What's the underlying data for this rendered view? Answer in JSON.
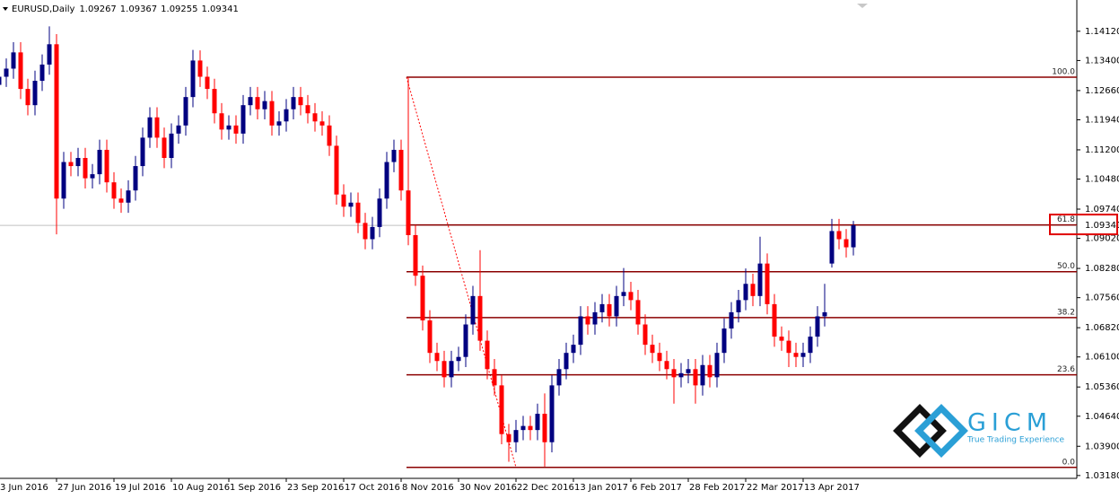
{
  "chart_data": {
    "type": "candlestick",
    "header": {
      "symbol": "EURUSD,Daily",
      "quote": [
        1.09267,
        1.09367,
        1.09255,
        1.09341
      ]
    },
    "categories": [
      "3 Jun 2016",
      null,
      null,
      null,
      null,
      null,
      null,
      null,
      "27 Jun 2016",
      null,
      null,
      null,
      null,
      null,
      null,
      null,
      "19 Jul 2016",
      null,
      null,
      null,
      null,
      null,
      null,
      null,
      "10 Aug 2016",
      null,
      null,
      null,
      null,
      null,
      null,
      null,
      "1 Sep 2016",
      null,
      null,
      null,
      null,
      null,
      null,
      null,
      "23 Sep 2016",
      null,
      null,
      null,
      null,
      null,
      null,
      null,
      "17 Oct 2016",
      null,
      null,
      null,
      null,
      null,
      null,
      null,
      "8 Nov 2016",
      null,
      null,
      null,
      null,
      null,
      null,
      null,
      "30 Nov 2016",
      null,
      null,
      null,
      null,
      null,
      null,
      null,
      "22 Dec 2016",
      null,
      null,
      null,
      null,
      null,
      null,
      null,
      "13 Jan 2017",
      null,
      null,
      null,
      null,
      null,
      null,
      null,
      "6 Feb 2017",
      null,
      null,
      null,
      null,
      null,
      null,
      null,
      "28 Feb 2017",
      null,
      null,
      null,
      null,
      null,
      null,
      null,
      "22 Mar 2017",
      null,
      null,
      null,
      null,
      null,
      null,
      null,
      "13 Apr 2017",
      null,
      null,
      null,
      null,
      null,
      null,
      null
    ],
    "open": [
      1.128,
      1.13,
      1.132,
      1.136,
      1.127,
      1.123,
      1.129,
      1.133,
      1.138,
      1.1,
      1.109,
      1.108,
      1.11,
      1.105,
      1.106,
      1.112,
      1.104,
      1.1,
      1.099,
      1.102,
      1.108,
      1.115,
      1.12,
      1.115,
      1.11,
      1.116,
      1.118,
      1.125,
      1.134,
      1.13,
      1.127,
      1.121,
      1.117,
      1.118,
      1.116,
      1.123,
      1.125,
      1.122,
      1.124,
      1.118,
      1.119,
      1.122,
      1.125,
      1.123,
      1.121,
      1.119,
      1.118,
      1.113,
      1.101,
      1.098,
      1.099,
      1.094,
      1.09,
      1.093,
      1.1,
      1.109,
      1.112,
      1.102,
      1.091,
      1.081,
      1.07,
      1.062,
      1.06,
      1.056,
      1.06,
      1.061,
      1.069,
      1.076,
      1.065,
      1.058,
      1.054,
      1.042,
      1.04,
      1.043,
      1.044,
      1.043,
      1.047,
      1.04,
      1.054,
      1.058,
      1.062,
      1.064,
      1.071,
      1.069,
      1.072,
      1.074,
      1.071,
      1.076,
      1.077,
      1.075,
      1.069,
      1.064,
      1.062,
      1.06,
      1.058,
      1.056,
      1.057,
      1.058,
      1.054,
      1.059,
      1.056,
      1.062,
      1.068,
      1.072,
      1.075,
      1.079,
      1.076,
      1.084,
      1.074,
      1.066,
      1.065,
      1.062,
      1.061,
      1.062,
      1.066,
      1.071,
      1.084,
      1.092,
      1.09,
      1.088
    ],
    "high": [
      1.1325,
      1.1345,
      1.1385,
      1.1385,
      1.1295,
      1.1315,
      1.1355,
      1.1424,
      1.1405,
      1.1115,
      1.1115,
      1.1125,
      1.1125,
      1.1085,
      1.1145,
      1.1145,
      1.1065,
      1.1025,
      1.1045,
      1.1105,
      1.1175,
      1.1225,
      1.1225,
      1.1175,
      1.1185,
      1.1205,
      1.1275,
      1.1366,
      1.1365,
      1.1325,
      1.1295,
      1.1235,
      1.1205,
      1.1205,
      1.1255,
      1.1275,
      1.1275,
      1.1265,
      1.1265,
      1.1215,
      1.1245,
      1.1275,
      1.1275,
      1.1255,
      1.1235,
      1.1215,
      1.1205,
      1.1155,
      1.1035,
      1.1015,
      1.1015,
      1.0965,
      1.0955,
      1.1025,
      1.1115,
      1.1145,
      1.1145,
      1.1299,
      1.0935,
      1.0835,
      1.0725,
      1.0645,
      1.0625,
      1.0625,
      1.0635,
      1.0715,
      1.0785,
      1.0873,
      1.0675,
      1.0605,
      1.0565,
      1.0445,
      1.0455,
      1.0465,
      1.0465,
      1.0495,
      1.052,
      1.0565,
      1.0605,
      1.0645,
      1.0665,
      1.0735,
      1.0735,
      1.0745,
      1.0765,
      1.0765,
      1.0785,
      1.0829,
      1.0795,
      1.0775,
      1.0715,
      1.0665,
      1.0645,
      1.0625,
      1.0605,
      1.0595,
      1.0605,
      1.0605,
      1.0615,
      1.0615,
      1.0645,
      1.0705,
      1.0745,
      1.0775,
      1.0828,
      1.0815,
      1.0906,
      1.0865,
      1.0765,
      1.0685,
      1.0675,
      1.0645,
      1.0645,
      1.0685,
      1.0735,
      1.079,
      1.095,
      1.095,
      1.0925,
      1.0945
    ],
    "low": [
      1.1255,
      1.1275,
      1.1295,
      1.1245,
      1.1205,
      1.1205,
      1.1265,
      1.1305,
      1.0912,
      1.0975,
      1.1055,
      1.1055,
      1.1025,
      1.1025,
      1.1035,
      1.1015,
      1.0975,
      1.0965,
      1.0965,
      1.0995,
      1.1055,
      1.1125,
      1.1125,
      1.1075,
      1.1075,
      1.1135,
      1.1155,
      1.1225,
      1.1275,
      1.1245,
      1.1185,
      1.1145,
      1.1145,
      1.1135,
      1.1135,
      1.1205,
      1.1195,
      1.1195,
      1.1155,
      1.1155,
      1.1165,
      1.1195,
      1.1205,
      1.1185,
      1.1165,
      1.1155,
      1.1105,
      1.0985,
      1.0955,
      1.0955,
      1.0915,
      1.0875,
      1.0875,
      1.0905,
      1.0975,
      1.1065,
      1.0995,
      1.0885,
      1.0785,
      1.0675,
      1.0595,
      1.0575,
      1.0535,
      1.0535,
      1.0575,
      1.0585,
      1.0665,
      1.0625,
      1.0555,
      1.0515,
      1.0395,
      1.0352,
      1.0375,
      1.0405,
      1.0405,
      1.0405,
      1.034,
      1.0375,
      1.0515,
      1.0555,
      1.0595,
      1.0615,
      1.0665,
      1.0665,
      1.0695,
      1.0685,
      1.0685,
      1.0735,
      1.0725,
      1.0665,
      1.0615,
      1.0595,
      1.0575,
      1.0555,
      1.0495,
      1.0535,
      1.0545,
      1.0495,
      1.0515,
      1.0535,
      1.0535,
      1.0595,
      1.0655,
      1.0695,
      1.0725,
      1.0735,
      1.0735,
      1.0715,
      1.0635,
      1.0625,
      1.0585,
      1.0585,
      1.0585,
      1.0595,
      1.0635,
      1.0685,
      1.083,
      1.0875,
      1.0855,
      1.086
    ],
    "close": [
      1.13,
      1.132,
      1.136,
      1.127,
      1.123,
      1.129,
      1.133,
      1.138,
      1.1,
      1.109,
      1.108,
      1.11,
      1.105,
      1.106,
      1.112,
      1.104,
      1.1,
      1.099,
      1.102,
      1.108,
      1.115,
      1.12,
      1.115,
      1.11,
      1.116,
      1.118,
      1.125,
      1.134,
      1.13,
      1.127,
      1.121,
      1.117,
      1.118,
      1.116,
      1.123,
      1.125,
      1.122,
      1.124,
      1.118,
      1.119,
      1.122,
      1.125,
      1.123,
      1.121,
      1.119,
      1.118,
      1.113,
      1.101,
      1.098,
      1.099,
      1.094,
      1.09,
      1.093,
      1.1,
      1.109,
      1.112,
      1.102,
      1.091,
      1.081,
      1.07,
      1.062,
      1.06,
      1.056,
      1.06,
      1.061,
      1.069,
      1.076,
      1.065,
      1.058,
      1.054,
      1.042,
      1.04,
      1.043,
      1.044,
      1.043,
      1.047,
      1.04,
      1.054,
      1.058,
      1.062,
      1.064,
      1.071,
      1.069,
      1.072,
      1.074,
      1.071,
      1.076,
      1.077,
      1.075,
      1.069,
      1.064,
      1.062,
      1.06,
      1.058,
      1.056,
      1.057,
      1.058,
      1.054,
      1.059,
      1.056,
      1.062,
      1.068,
      1.072,
      1.075,
      1.079,
      1.076,
      1.084,
      1.074,
      1.066,
      1.065,
      1.062,
      1.061,
      1.062,
      1.066,
      1.071,
      1.072,
      1.092,
      1.09,
      1.088,
      1.09341
    ],
    "up_color": "#000080",
    "down_color": "#ff0000",
    "ylim": [
      1.0311,
      1.1489
    ],
    "yticks": [
      {
        "value": 1.1412,
        "label": "1.14120"
      },
      {
        "value": 1.134,
        "label": "1.13400"
      },
      {
        "value": 1.1266,
        "label": "1.12660"
      },
      {
        "value": 1.1194,
        "label": "1.11940"
      },
      {
        "value": 1.112,
        "label": "1.11200"
      },
      {
        "value": 1.1048,
        "label": "1.10480"
      },
      {
        "value": 1.0974,
        "label": "1.09740"
      },
      {
        "value": 1.0902,
        "label": "1.09020"
      },
      {
        "value": 1.0828,
        "label": "1.08280"
      },
      {
        "value": 1.0756,
        "label": "1.07560"
      },
      {
        "value": 1.0682,
        "label": "1.06820"
      },
      {
        "value": 1.061,
        "label": "1.06100"
      },
      {
        "value": 1.0536,
        "label": "1.05360"
      },
      {
        "value": 1.0464,
        "label": "1.04640"
      },
      {
        "value": 1.039,
        "label": "1.03900"
      },
      {
        "value": 1.0318,
        "label": "1.03180"
      }
    ],
    "grid": false,
    "current_price": 1.09341,
    "fibonacci": {
      "labels": [
        "100.0",
        "61.8",
        "50.0",
        "38.2",
        "23.6",
        "0.0"
      ],
      "prices": [
        1.1299,
        1.0935,
        1.082,
        1.0707,
        1.0566,
        1.0338
      ],
      "color": "#8b0000"
    },
    "watermark": {
      "title": "GICM",
      "tagline": "True Trading Experience"
    }
  }
}
